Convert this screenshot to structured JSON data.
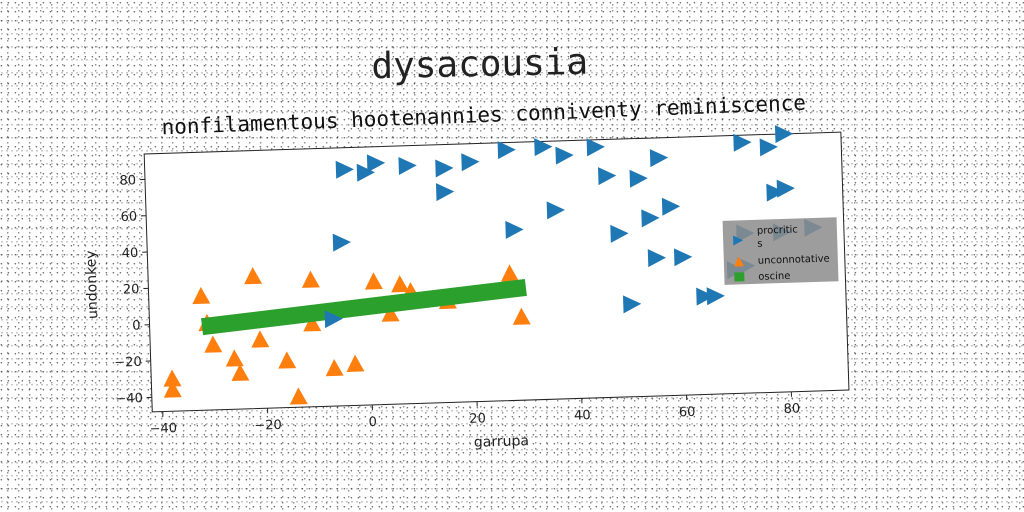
{
  "chart_data": {
    "type": "scatter",
    "suptitle": "dysacousia",
    "title": "nonfilamentous hootenannies conniventy reminiscence",
    "xlabel": "garrupa",
    "ylabel": "undonkey",
    "xlim": [
      -42,
      91
    ],
    "ylim": [
      -48,
      94
    ],
    "xticks": [
      -40,
      -20,
      0,
      20,
      40,
      60,
      80
    ],
    "yticks": [
      -40,
      -20,
      0,
      20,
      40,
      60,
      80
    ],
    "xtick_labels": [
      "−40",
      "−20",
      "0",
      "20",
      "40",
      "60",
      "80"
    ],
    "ytick_labels": [
      "−40",
      "−20",
      "0",
      "20",
      "40",
      "60",
      "80"
    ],
    "grid": false,
    "legend_position": "right",
    "series": [
      {
        "name": "procritic s",
        "marker": "triangle-right",
        "color": "#1f77b4",
        "points": [
          [
            -4,
            82
          ],
          [
            0,
            80
          ],
          [
            2,
            85
          ],
          [
            8,
            83
          ],
          [
            15,
            81
          ],
          [
            20,
            84
          ],
          [
            27,
            90
          ],
          [
            34,
            91
          ],
          [
            38,
            86
          ],
          [
            44,
            90
          ],
          [
            46,
            74
          ],
          [
            52,
            72
          ],
          [
            56,
            83
          ],
          [
            72,
            90
          ],
          [
            77,
            87
          ],
          [
            80,
            94
          ],
          [
            15,
            68
          ],
          [
            36,
            56
          ],
          [
            58,
            56
          ],
          [
            54,
            50
          ],
          [
            78,
            62
          ],
          [
            80,
            64
          ],
          [
            -5,
            42
          ],
          [
            28,
            46
          ],
          [
            48,
            42
          ],
          [
            72,
            40
          ],
          [
            79,
            40
          ],
          [
            85,
            42
          ],
          [
            55,
            28
          ],
          [
            60,
            28
          ],
          [
            70,
            20
          ],
          [
            72,
            22
          ],
          [
            50,
            3
          ],
          [
            64,
            6
          ],
          [
            66,
            6
          ],
          [
            -7,
            0
          ]
        ]
      },
      {
        "name": "unconnotative",
        "marker": "triangle-up",
        "color": "#ff7f0e",
        "points": [
          [
            -32,
            15
          ],
          [
            -22,
            25
          ],
          [
            -11,
            22
          ],
          [
            -31,
            0
          ],
          [
            -30,
            -12
          ],
          [
            -26,
            -20
          ],
          [
            -25,
            -28
          ],
          [
            -21,
            -10
          ],
          [
            -16,
            -22
          ],
          [
            -14,
            -42
          ],
          [
            -7,
            -27
          ],
          [
            -3,
            -25
          ],
          [
            -11,
            -2
          ],
          [
            1,
            20
          ],
          [
            6,
            18
          ],
          [
            8,
            14
          ],
          [
            4,
            2
          ],
          [
            15,
            8
          ],
          [
            27,
            22
          ],
          [
            29,
            -2
          ],
          [
            -38,
            -30
          ],
          [
            -38,
            -36
          ]
        ]
      },
      {
        "name": "oscine",
        "marker": "line",
        "color": "#2ca02c",
        "line": [
          [
            -32,
            -2
          ],
          [
            30,
            14
          ]
        ]
      }
    ]
  }
}
